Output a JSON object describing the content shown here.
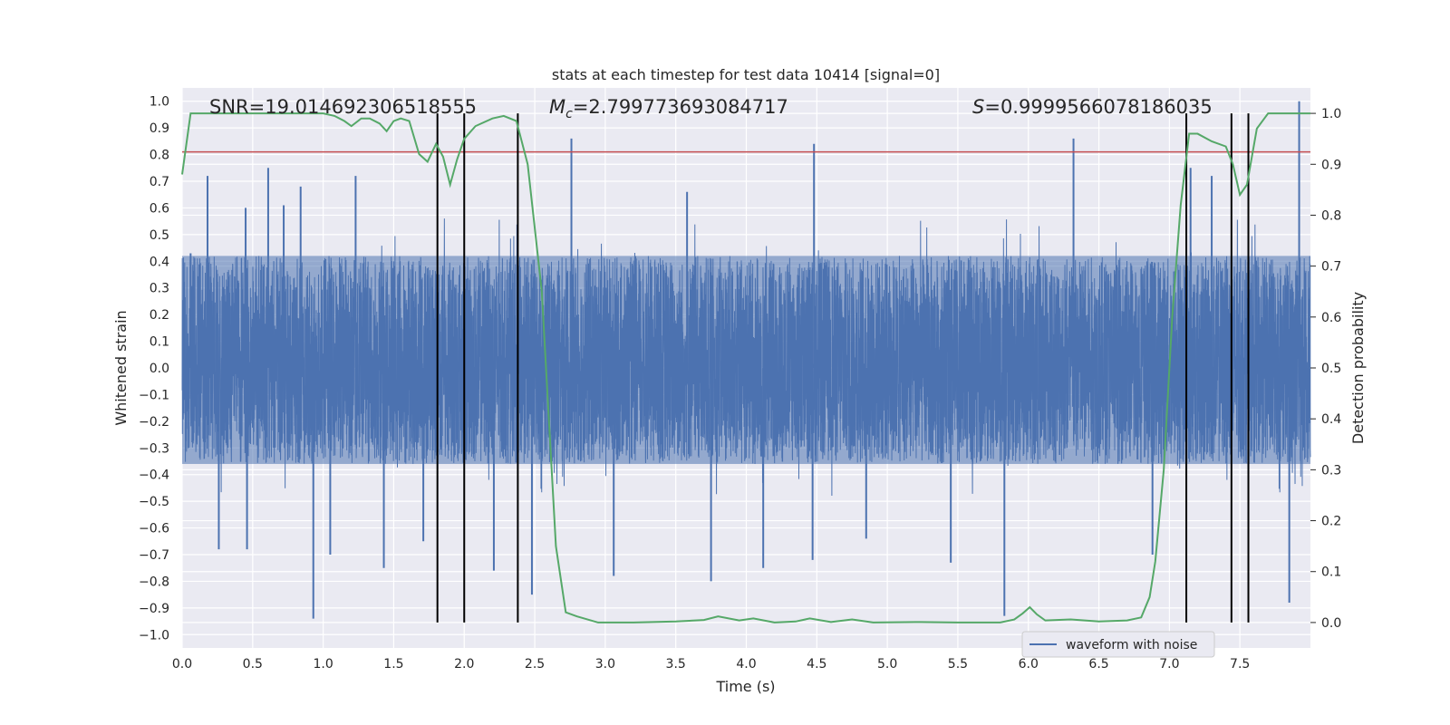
{
  "chart_data": {
    "type": "line",
    "title": "stats at each timestep for test data 10414 [signal=0]",
    "xlabel": "Time (s)",
    "ylabel": "Whitened strain",
    "ylabel_right": "Detection probability",
    "xlim": [
      0,
      8
    ],
    "ylim": [
      -1.05,
      1.05
    ],
    "ylim_right": [
      -0.05,
      1.05
    ],
    "x_ticks": [
      0.0,
      0.5,
      1.0,
      1.5,
      2.0,
      2.5,
      3.0,
      3.5,
      4.0,
      4.5,
      5.0,
      5.5,
      6.0,
      6.5,
      7.0,
      7.5
    ],
    "x_tick_labels": [
      "0.0",
      "0.5",
      "1.0",
      "1.5",
      "2.0",
      "2.5",
      "3.0",
      "3.5",
      "4.0",
      "4.5",
      "5.0",
      "5.5",
      "6.0",
      "6.5",
      "7.0",
      "7.5"
    ],
    "y_ticks": [
      1.0,
      0.9,
      0.8,
      0.7,
      0.6,
      0.5,
      0.4,
      0.3,
      0.2,
      0.1,
      0.0,
      -0.1,
      -0.2,
      -0.3,
      -0.4,
      -0.5,
      -0.6,
      -0.7,
      -0.8,
      -0.9,
      -1.0
    ],
    "y_tick_labels": [
      "1.0",
      "0.9",
      "0.8",
      "0.7",
      "0.6",
      "0.5",
      "0.4",
      "0.3",
      "0.2",
      "0.1",
      "0.0",
      "−0.1",
      "−0.2",
      "−0.3",
      "−0.4",
      "−0.5",
      "−0.6",
      "−0.7",
      "−0.8",
      "−0.9",
      "−1.0"
    ],
    "y_right_ticks": [
      1.0,
      0.9,
      0.8,
      0.7,
      0.6,
      0.5,
      0.4,
      0.3,
      0.2,
      0.1,
      0.0
    ],
    "y_right_tick_labels": [
      "1.0",
      "0.9",
      "0.8",
      "0.7",
      "0.6",
      "0.5",
      "0.4",
      "0.3",
      "0.2",
      "0.1",
      "0.0"
    ],
    "grid": true,
    "legend_position": "lower-right",
    "stats": {
      "snr": "SNR=19.014692306518555",
      "mc_symbol": "M",
      "mc_subscript": "c",
      "mc_value": "=2.799773693084717",
      "s_symbol": "S",
      "s_value": "=0.9999566078186035"
    },
    "series": [
      {
        "name": "waveform with noise",
        "axis": "left",
        "color": "#4c72b0",
        "typical_envelope": [
          -0.36,
          0.42
        ],
        "peak_values": [
          {
            "x": 0.06,
            "y": 0.43
          },
          {
            "x": 0.18,
            "y": 0.72
          },
          {
            "x": 0.26,
            "y": -0.68
          },
          {
            "x": 0.45,
            "y": 0.6
          },
          {
            "x": 0.46,
            "y": -0.68
          },
          {
            "x": 0.61,
            "y": 0.75
          },
          {
            "x": 0.72,
            "y": 0.61
          },
          {
            "x": 0.84,
            "y": 0.68
          },
          {
            "x": 0.93,
            "y": -0.94
          },
          {
            "x": 1.05,
            "y": -0.7
          },
          {
            "x": 1.23,
            "y": 0.72
          },
          {
            "x": 1.43,
            "y": -0.75
          },
          {
            "x": 1.71,
            "y": -0.65
          },
          {
            "x": 2.21,
            "y": -0.76
          },
          {
            "x": 2.48,
            "y": -0.85
          },
          {
            "x": 2.76,
            "y": 0.86
          },
          {
            "x": 3.06,
            "y": -0.78
          },
          {
            "x": 3.58,
            "y": 0.66
          },
          {
            "x": 3.75,
            "y": -0.8
          },
          {
            "x": 4.12,
            "y": -0.75
          },
          {
            "x": 4.48,
            "y": 0.84
          },
          {
            "x": 4.47,
            "y": -0.72
          },
          {
            "x": 4.85,
            "y": -0.64
          },
          {
            "x": 5.45,
            "y": -0.73
          },
          {
            "x": 5.83,
            "y": -0.93
          },
          {
            "x": 6.32,
            "y": 0.86
          },
          {
            "x": 6.88,
            "y": -0.7
          },
          {
            "x": 7.15,
            "y": 0.75
          },
          {
            "x": 7.3,
            "y": 0.72
          },
          {
            "x": 7.85,
            "y": -0.88
          },
          {
            "x": 7.92,
            "y": 1.0
          }
        ]
      },
      {
        "name": "",
        "axis": "right",
        "color": "#55a868",
        "points": [
          [
            0.0,
            0.88
          ],
          [
            0.06,
            1.0
          ],
          [
            0.12,
            1.0
          ],
          [
            0.5,
            1.0
          ],
          [
            0.8,
            1.0
          ],
          [
            1.0,
            1.0
          ],
          [
            1.08,
            0.995
          ],
          [
            1.15,
            0.985
          ],
          [
            1.2,
            0.975
          ],
          [
            1.27,
            0.99
          ],
          [
            1.33,
            0.99
          ],
          [
            1.4,
            0.98
          ],
          [
            1.45,
            0.965
          ],
          [
            1.5,
            0.985
          ],
          [
            1.55,
            0.99
          ],
          [
            1.61,
            0.985
          ],
          [
            1.68,
            0.92
          ],
          [
            1.74,
            0.905
          ],
          [
            1.8,
            0.94
          ],
          [
            1.85,
            0.915
          ],
          [
            1.9,
            0.86
          ],
          [
            1.95,
            0.91
          ],
          [
            2.0,
            0.95
          ],
          [
            2.08,
            0.975
          ],
          [
            2.2,
            0.99
          ],
          [
            2.28,
            0.995
          ],
          [
            2.37,
            0.985
          ],
          [
            2.45,
            0.9
          ],
          [
            2.55,
            0.65
          ],
          [
            2.65,
            0.15
          ],
          [
            2.72,
            0.02
          ],
          [
            2.8,
            0.012
          ],
          [
            2.95,
            0.0
          ],
          [
            3.2,
            0.0
          ],
          [
            3.5,
            0.002
          ],
          [
            3.7,
            0.005
          ],
          [
            3.8,
            0.012
          ],
          [
            3.95,
            0.004
          ],
          [
            4.05,
            0.008
          ],
          [
            4.2,
            0.0
          ],
          [
            4.35,
            0.002
          ],
          [
            4.45,
            0.008
          ],
          [
            4.6,
            0.001
          ],
          [
            4.75,
            0.006
          ],
          [
            4.9,
            0.0
          ],
          [
            5.2,
            0.001
          ],
          [
            5.5,
            0.0
          ],
          [
            5.8,
            0.0
          ],
          [
            5.9,
            0.006
          ],
          [
            5.96,
            0.018
          ],
          [
            6.01,
            0.03
          ],
          [
            6.06,
            0.016
          ],
          [
            6.12,
            0.004
          ],
          [
            6.3,
            0.006
          ],
          [
            6.5,
            0.002
          ],
          [
            6.7,
            0.004
          ],
          [
            6.8,
            0.01
          ],
          [
            6.86,
            0.05
          ],
          [
            6.9,
            0.12
          ],
          [
            6.96,
            0.3
          ],
          [
            7.02,
            0.6
          ],
          [
            7.08,
            0.82
          ],
          [
            7.14,
            0.96
          ],
          [
            7.2,
            0.96
          ],
          [
            7.3,
            0.945
          ],
          [
            7.4,
            0.935
          ],
          [
            7.45,
            0.9
          ],
          [
            7.5,
            0.84
          ],
          [
            7.55,
            0.86
          ],
          [
            7.62,
            0.97
          ],
          [
            7.7,
            1.0
          ],
          [
            8.0,
            1.0
          ]
        ]
      }
    ],
    "threshold_line": {
      "axis": "left",
      "y": 0.81,
      "color": "#c44e52"
    },
    "vertical_markers": {
      "color": "#000000",
      "x": [
        1.81,
        2.0,
        2.38,
        7.12,
        7.44,
        7.56
      ],
      "y_range_right": [
        0.0,
        1.0
      ]
    }
  }
}
